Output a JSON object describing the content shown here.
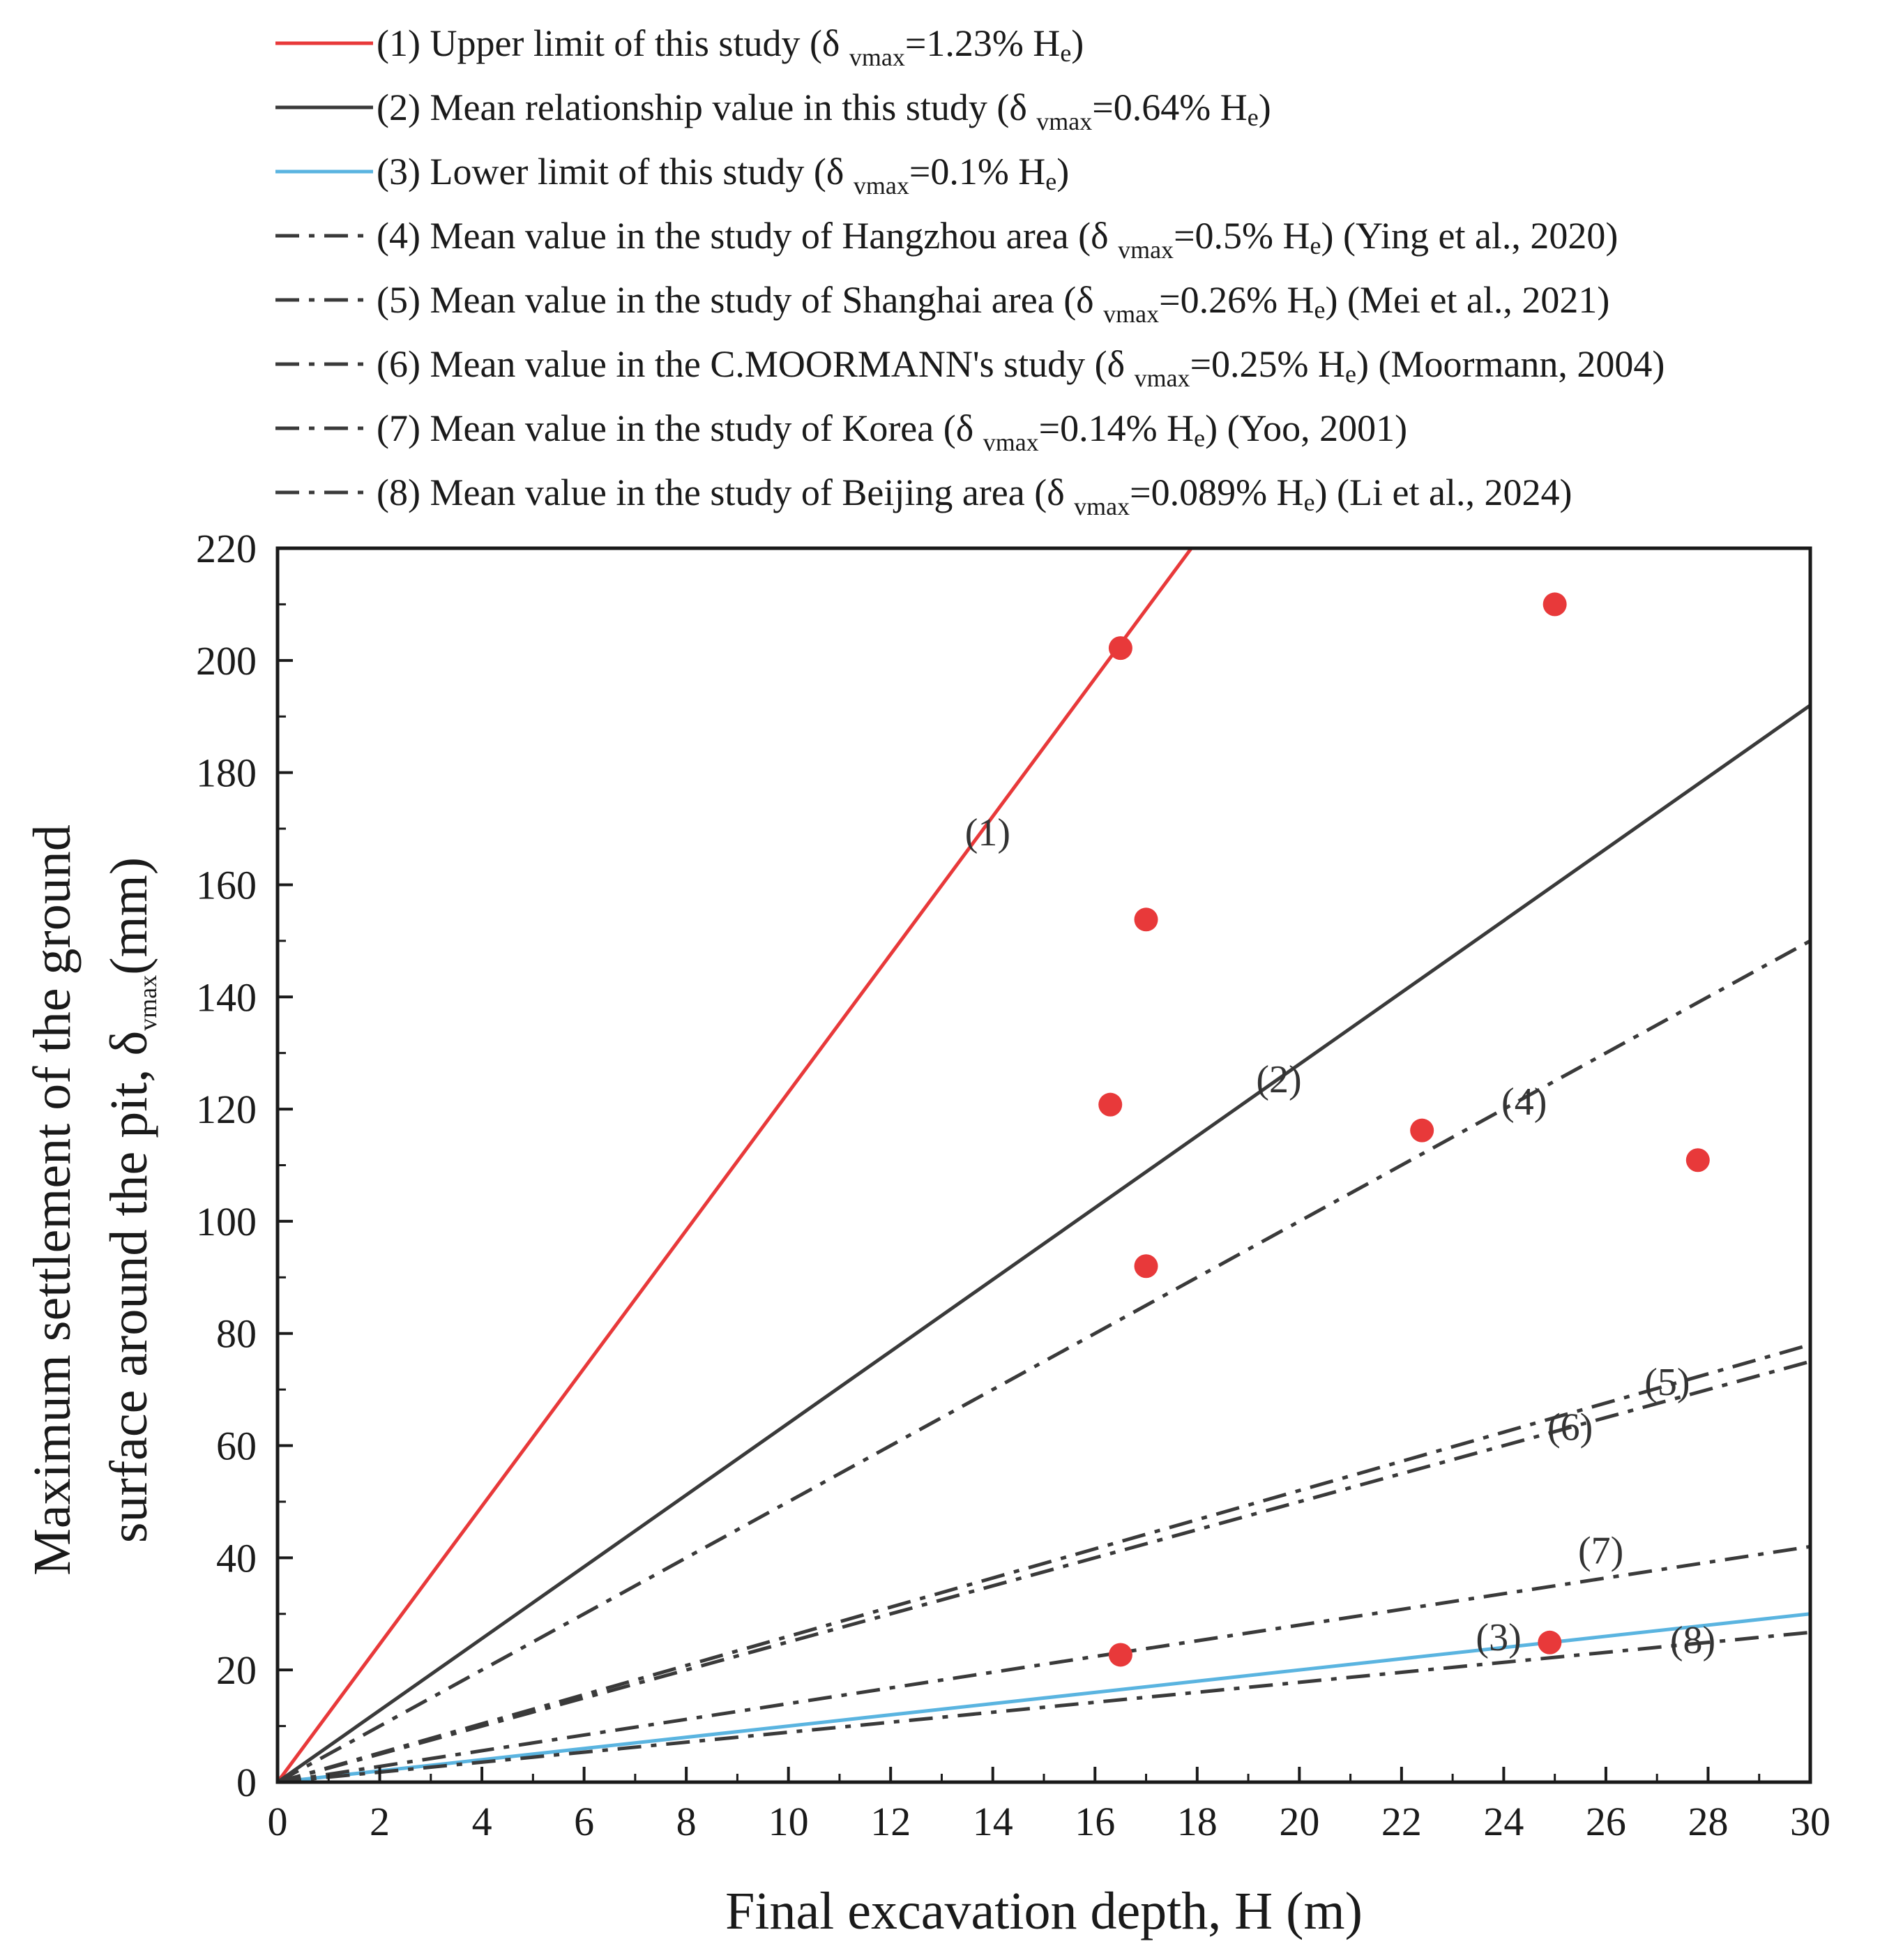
{
  "chart_data": {
    "type": "scatter",
    "xlabel": "Final excavation depth, H (m)",
    "ylabel_line1": "Maximum settlement of the ground",
    "ylabel_line2_prefix": "surface around the pit, δ",
    "ylabel_line2_sub": "vmax",
    "ylabel_line2_suffix": "(mm)",
    "xlim": [
      0,
      30
    ],
    "ylim": [
      0,
      220
    ],
    "x_ticks": [
      "0",
      "2",
      "4",
      "6",
      "8",
      "10",
      "12",
      "14",
      "16",
      "18",
      "20",
      "22",
      "24",
      "26",
      "28",
      "30"
    ],
    "y_ticks": [
      "0",
      "20",
      "40",
      "60",
      "80",
      "100",
      "120",
      "140",
      "160",
      "180",
      "200",
      "220"
    ],
    "series": [
      {
        "id": "1",
        "label_num": "(1)",
        "pre": " Upper limit of this study (δ ",
        "sub": "vmax",
        "mid": "=1.23% H",
        "esub": "e",
        "post": ")",
        "slope": 12.3,
        "style": "solid",
        "color": "#e8393a",
        "tag": "(1)",
        "tag_x": 13.9,
        "tag_y": 167
      },
      {
        "id": "2",
        "label_num": "(2)",
        "pre": " Mean relationship value in this study (δ ",
        "sub": "vmax",
        "mid": "=0.64% H",
        "esub": "e",
        "post": ")",
        "slope": 6.4,
        "style": "solid",
        "color": "#3a3a3a",
        "tag": "(2)",
        "tag_x": 19.6,
        "tag_y": 123
      },
      {
        "id": "3",
        "label_num": "(3)",
        "pre": " Lower limit of this study  (δ ",
        "sub": "vmax",
        "mid": "=0.1% H",
        "esub": "e",
        "post": ")",
        "slope": 1.0,
        "style": "solid",
        "color": "#5ab4e0",
        "tag": "(3)",
        "tag_x": 23.9,
        "tag_y": 23.5
      },
      {
        "id": "4",
        "label_num": "(4)",
        "pre": " Mean value in the study of Hangzhou area (δ ",
        "sub": "vmax",
        "mid": "=0.5% H",
        "esub": "e",
        "post": ") (Ying et al., 2020)",
        "slope": 5.0,
        "style": "dashdot",
        "color": "#3a3a3a",
        "tag": "(4)",
        "tag_x": 24.4,
        "tag_y": 119
      },
      {
        "id": "5",
        "label_num": "(5)",
        "pre": " Mean value in the study of Shanghai area (δ ",
        "sub": "vmax",
        "mid": "=0.26% H",
        "esub": "e",
        "post": ") (Mei et al., 2021)",
        "slope": 2.6,
        "style": "dashdot",
        "color": "#3a3a3a",
        "tag": "(5)",
        "tag_x": 27.2,
        "tag_y": 69
      },
      {
        "id": "6",
        "label_num": "(6)",
        "pre": " Mean value in the C.MOORMANN's study (δ ",
        "sub": "vmax",
        "mid": "=0.25% H",
        "esub": "e",
        "post": ") (Moormann, 2004)",
        "slope": 2.5,
        "style": "dashdot",
        "color": "#3a3a3a",
        "tag": "(6)",
        "tag_x": 25.3,
        "tag_y": 61
      },
      {
        "id": "7",
        "label_num": "(7)",
        "pre": " Mean value in the study of Korea (δ ",
        "sub": "vmax",
        "mid": "=0.14% H",
        "esub": "e",
        "post": ") (Yoo, 2001)",
        "slope": 1.4,
        "style": "dashdot",
        "color": "#3a3a3a",
        "tag": "(7)",
        "tag_x": 25.9,
        "tag_y": 39
      },
      {
        "id": "8",
        "label_num": "(8)",
        "pre": " Mean value in the study of Beijing area (δ ",
        "sub": "vmax",
        "mid": "=0.089% H",
        "esub": "e",
        "post": ") (Li et al., 2024)",
        "slope": 0.89,
        "style": "dashdot",
        "color": "#3a3a3a",
        "tag": "(8)",
        "tag_x": 27.7,
        "tag_y": 23
      }
    ],
    "points": [
      {
        "x": 16.5,
        "y": 202.2
      },
      {
        "x": 25.0,
        "y": 210.0
      },
      {
        "x": 17.0,
        "y": 153.8
      },
      {
        "x": 16.3,
        "y": 120.8
      },
      {
        "x": 22.4,
        "y": 116.2
      },
      {
        "x": 27.8,
        "y": 110.9
      },
      {
        "x": 17.0,
        "y": 92.0
      },
      {
        "x": 16.5,
        "y": 22.7
      },
      {
        "x": 24.9,
        "y": 24.9
      }
    ],
    "point_color": "#e8393a"
  }
}
